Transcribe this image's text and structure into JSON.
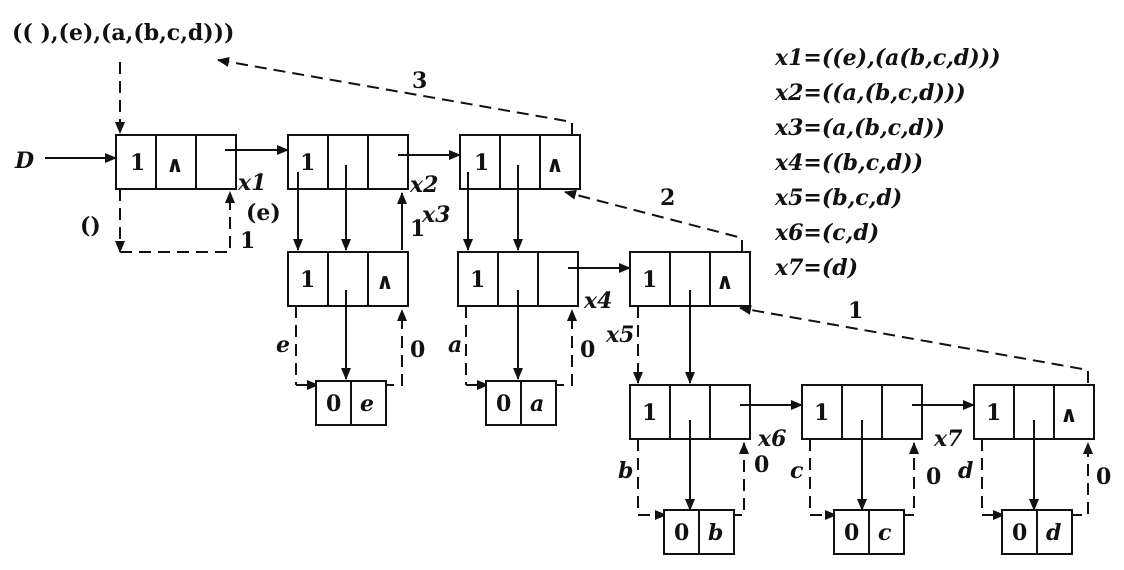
{
  "expression": "(( ),(e),(a,(b,c,d)))",
  "definitions": [
    "x1=((e),(a(b,c,d)))",
    "x2=((a,(b,c,d)))",
    "x3=(a,(b,c,d))",
    "x4=((b,c,d))",
    "x5=(b,c,d)",
    "x6=(c,d)",
    "x7=(d)"
  ],
  "head_label": "D",
  "nodes": {
    "n1": [
      "1",
      "∧",
      ""
    ],
    "n2": [
      "1",
      "",
      ""
    ],
    "n3": [
      "1",
      "",
      "∧"
    ],
    "e_list": [
      "1",
      "",
      "∧"
    ],
    "a_list": [
      "1",
      "",
      ""
    ],
    "n4": [
      "1",
      "",
      "∧"
    ],
    "b_list": [
      "1",
      "",
      ""
    ],
    "c_list": [
      "1",
      "",
      ""
    ],
    "d_list": [
      "1",
      "",
      "∧"
    ]
  },
  "atoms": {
    "e": [
      "0",
      "e"
    ],
    "a": [
      "0",
      "a"
    ],
    "b": [
      "0",
      "b"
    ],
    "c": [
      "0",
      "c"
    ],
    "d": [
      "0",
      "d"
    ]
  },
  "pointer_labels": {
    "x1": "x1",
    "x2": "x2",
    "x3": "x3",
    "x4": "x4",
    "x5": "x5",
    "x6": "x6",
    "x7": "x7"
  },
  "edge_labels": {
    "empty": "()",
    "e_paren": "(e)",
    "one_a": "1",
    "one_b": "1",
    "e": "e",
    "zero_e": "0",
    "a": "a",
    "zero_a": "0",
    "b": "b",
    "zero_b": "0",
    "c": "c",
    "zero_c": "0",
    "d": "d",
    "zero_d": "0"
  },
  "level_labels": {
    "l3": "3",
    "l2": "2",
    "l1": "1"
  }
}
